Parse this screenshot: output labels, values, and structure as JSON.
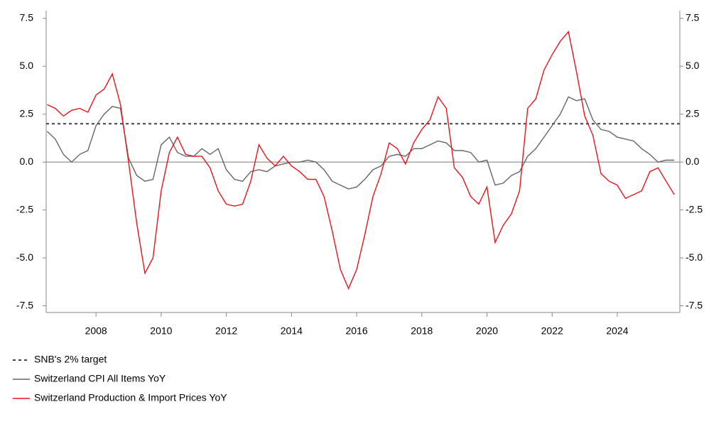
{
  "chart_data": {
    "type": "line",
    "xlim": [
      2006.47,
      2025.92
    ],
    "xticks": [
      2008,
      2010,
      2012,
      2014,
      2016,
      2018,
      2020,
      2022,
      2024
    ],
    "ylim": [
      -7.85,
      7.9
    ],
    "yticks": [
      7.5,
      {
        "value": 5,
        "label": "5.0"
      },
      2.5,
      {
        "value": 0,
        "label": "0.0"
      },
      -2.5,
      {
        "value": -5,
        "label": "-5.0"
      },
      -7.5
    ],
    "y2lim": [
      -7.85,
      7.9
    ],
    "y2ticks": [
      7.5,
      {
        "value": 5,
        "label": "5.0"
      },
      2.5,
      {
        "value": 0,
        "label": "0.0"
      },
      -2.5,
      {
        "value": -5,
        "label": "-5.0"
      },
      -7.5
    ],
    "series": [
      {
        "name": "SNB's 2% target",
        "color": "#404040",
        "style": "dashed",
        "x": [
          2006.47,
          2025.92
        ],
        "values": [
          2,
          2
        ]
      },
      {
        "name": "Switzerland CPI All Items YoY",
        "color": "#666666",
        "style": "solid",
        "x": [
          2006.5,
          2006.75,
          2007,
          2007.25,
          2007.5,
          2007.75,
          2008,
          2008.25,
          2008.5,
          2008.75,
          2009,
          2009.25,
          2009.5,
          2009.75,
          2010,
          2010.25,
          2010.5,
          2010.75,
          2011,
          2011.25,
          2011.5,
          2011.75,
          2012,
          2012.25,
          2012.5,
          2012.75,
          2013,
          2013.25,
          2013.5,
          2013.75,
          2014,
          2014.25,
          2014.5,
          2014.75,
          2015,
          2015.25,
          2015.5,
          2015.75,
          2016,
          2016.25,
          2016.5,
          2016.75,
          2017,
          2017.25,
          2017.5,
          2017.75,
          2018,
          2018.25,
          2018.5,
          2018.75,
          2019,
          2019.25,
          2019.5,
          2019.75,
          2020,
          2020.25,
          2020.5,
          2020.75,
          2021,
          2021.25,
          2021.5,
          2021.75,
          2022,
          2022.25,
          2022.5,
          2022.75,
          2023,
          2023.25,
          2023.5,
          2023.75,
          2024,
          2024.25,
          2024.5,
          2024.75,
          2025,
          2025.25,
          2025.5,
          2025.75
        ],
        "values": [
          1.6,
          1.2,
          0.4,
          0.0,
          0.4,
          0.6,
          1.9,
          2.5,
          2.9,
          2.8,
          0.2,
          -0.7,
          -1.0,
          -0.9,
          0.9,
          1.3,
          0.5,
          0.3,
          0.3,
          0.7,
          0.4,
          0.7,
          -0.4,
          -0.9,
          -1.0,
          -0.5,
          -0.4,
          -0.5,
          -0.2,
          -0.1,
          0.0,
          0.0,
          0.1,
          0.0,
          -0.4,
          -1.0,
          -1.2,
          -1.4,
          -1.3,
          -0.9,
          -0.4,
          -0.2,
          0.3,
          0.4,
          0.3,
          0.7,
          0.7,
          0.9,
          1.1,
          1.0,
          0.6,
          0.6,
          0.5,
          0.0,
          0.1,
          -1.2,
          -1.1,
          -0.7,
          -0.5,
          0.3,
          0.7,
          1.3,
          1.9,
          2.5,
          3.4,
          3.2,
          3.3,
          2.2,
          1.7,
          1.6,
          1.3,
          1.2,
          1.1,
          0.7,
          0.4,
          0.0,
          0.1,
          0.1
        ]
      },
      {
        "name": "Switzerland Production & Import Prices YoY",
        "color": "#e8141b",
        "style": "solid",
        "x": [
          2006.5,
          2006.75,
          2007,
          2007.25,
          2007.5,
          2007.75,
          2008,
          2008.25,
          2008.5,
          2008.75,
          2009,
          2009.25,
          2009.5,
          2009.75,
          2010,
          2010.25,
          2010.5,
          2010.75,
          2011,
          2011.25,
          2011.5,
          2011.75,
          2012,
          2012.25,
          2012.5,
          2012.75,
          2013,
          2013.25,
          2013.5,
          2013.75,
          2014,
          2014.25,
          2014.5,
          2014.75,
          2015,
          2015.25,
          2015.5,
          2015.75,
          2016,
          2016.25,
          2016.5,
          2016.75,
          2017,
          2017.25,
          2017.5,
          2017.75,
          2018,
          2018.25,
          2018.5,
          2018.75,
          2019,
          2019.25,
          2019.5,
          2019.75,
          2020,
          2020.25,
          2020.5,
          2020.75,
          2021,
          2021.25,
          2021.5,
          2021.75,
          2022,
          2022.25,
          2022.5,
          2022.75,
          2023,
          2023.25,
          2023.5,
          2023.75,
          2024,
          2024.25,
          2024.5,
          2024.75,
          2025,
          2025.25,
          2025.5,
          2025.75
        ],
        "values": [
          3.0,
          2.8,
          2.4,
          2.7,
          2.8,
          2.6,
          3.5,
          3.8,
          4.6,
          3.0,
          0.0,
          -3.2,
          -5.8,
          -5.0,
          -1.5,
          0.5,
          1.3,
          0.4,
          0.3,
          0.3,
          -0.3,
          -1.5,
          -2.2,
          -2.3,
          -2.2,
          -1.0,
          0.9,
          0.2,
          -0.2,
          0.3,
          -0.2,
          -0.5,
          -0.9,
          -0.9,
          -1.8,
          -3.6,
          -5.6,
          -6.6,
          -5.6,
          -3.8,
          -1.8,
          -0.6,
          1.0,
          0.7,
          -0.1,
          1.0,
          1.7,
          2.2,
          3.4,
          2.8,
          -0.3,
          -0.8,
          -1.8,
          -2.2,
          -1.3,
          -4.2,
          -3.3,
          -2.7,
          -1.5,
          2.8,
          3.3,
          4.8,
          5.6,
          6.3,
          6.8,
          4.7,
          2.4,
          1.4,
          -0.6,
          -1.0,
          -1.2,
          -1.9,
          -1.7,
          -1.5,
          -0.5,
          -0.3,
          -1.0,
          -1.7
        ]
      }
    ]
  }
}
